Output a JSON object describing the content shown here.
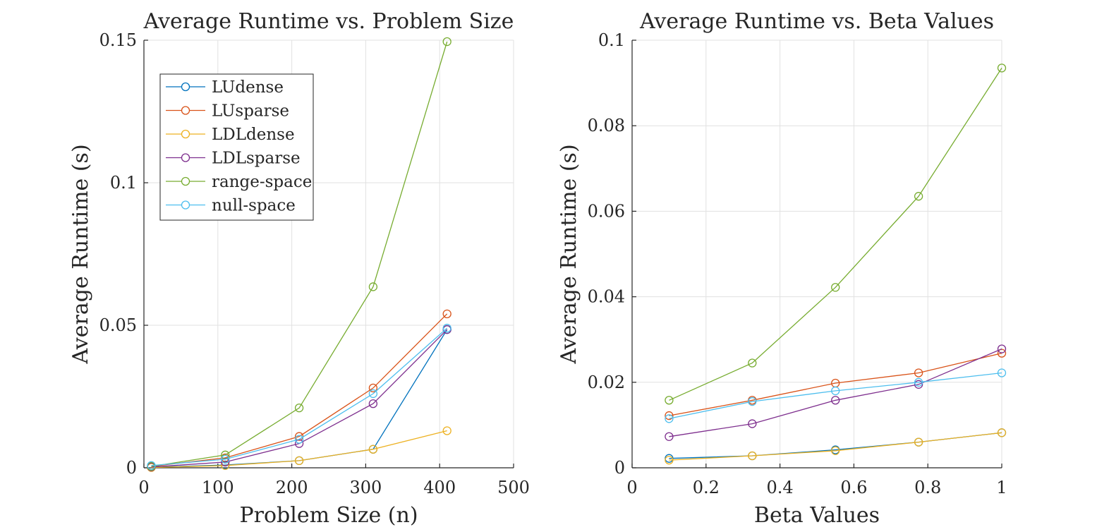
{
  "colors": {
    "LUdense": "#0072BD",
    "LUsparse": "#D95319",
    "LDLdense": "#EDB120",
    "LDLsparse": "#7E2F8E",
    "range-space": "#77AC30",
    "null-space": "#4DBEEE"
  },
  "chart_data": [
    {
      "type": "line",
      "title": "Average Runtime vs. Problem Size",
      "xlabel": "Problem Size (n)",
      "ylabel": "Average Runtime (s)",
      "xlim": [
        0,
        500
      ],
      "ylim": [
        0,
        0.15
      ],
      "xticks": [
        0,
        100,
        200,
        300,
        400,
        500
      ],
      "xtick_labels": [
        "0",
        "100",
        "200",
        "300",
        "400",
        "500"
      ],
      "yticks": [
        0,
        0.05,
        0.1,
        0.15
      ],
      "ytick_labels": [
        "0",
        "0.05",
        "0.1",
        "0.15"
      ],
      "grid": true,
      "legend": "top-left",
      "x": [
        10,
        110,
        210,
        310,
        410
      ],
      "series": [
        {
          "name": "LUdense",
          "values": [
            0.0002,
            0.001,
            0.0025,
            0.0065,
            0.0485
          ]
        },
        {
          "name": "LUsparse",
          "values": [
            0.0005,
            0.0035,
            0.011,
            0.028,
            0.054
          ]
        },
        {
          "name": "LDLdense",
          "values": [
            0.0001,
            0.0008,
            0.0025,
            0.0065,
            0.013
          ]
        },
        {
          "name": "LDLsparse",
          "values": [
            0.0003,
            0.002,
            0.0085,
            0.0225,
            0.0485
          ]
        },
        {
          "name": "range-space",
          "values": [
            0.0005,
            0.0045,
            0.021,
            0.0635,
            0.1495
          ]
        },
        {
          "name": "null-space",
          "values": [
            0.0008,
            0.003,
            0.01,
            0.026,
            0.049
          ]
        }
      ]
    },
    {
      "type": "line",
      "title": "Average Runtime vs. Beta Values",
      "xlabel": "Beta Values",
      "ylabel": "Average Runtime (s)",
      "xlim": [
        0,
        1
      ],
      "ylim": [
        0,
        0.1
      ],
      "xticks": [
        0,
        0.2,
        0.4,
        0.6,
        0.8,
        1
      ],
      "xtick_labels": [
        "0",
        "0.2",
        "0.4",
        "0.6",
        "0.8",
        "1"
      ],
      "yticks": [
        0,
        0.02,
        0.04,
        0.06,
        0.08,
        0.1
      ],
      "ytick_labels": [
        "0",
        "0.02",
        "0.04",
        "0.06",
        "0.08",
        "0.1"
      ],
      "grid": true,
      "x": [
        0.1,
        0.325,
        0.55,
        0.775,
        1.0
      ],
      "series": [
        {
          "name": "LUdense",
          "values": [
            0.0022,
            0.0028,
            0.0042,
            0.006,
            0.0082
          ]
        },
        {
          "name": "LUsparse",
          "values": [
            0.0122,
            0.0158,
            0.0198,
            0.0222,
            0.0268
          ]
        },
        {
          "name": "LDLdense",
          "values": [
            0.0018,
            0.0028,
            0.004,
            0.006,
            0.0082
          ]
        },
        {
          "name": "LDLsparse",
          "values": [
            0.0073,
            0.0103,
            0.0158,
            0.0195,
            0.0278
          ]
        },
        {
          "name": "range-space",
          "values": [
            0.0158,
            0.0245,
            0.0422,
            0.0635,
            0.0935
          ]
        },
        {
          "name": "null-space",
          "values": [
            0.0115,
            0.0155,
            0.018,
            0.02,
            0.0222
          ]
        }
      ]
    }
  ]
}
